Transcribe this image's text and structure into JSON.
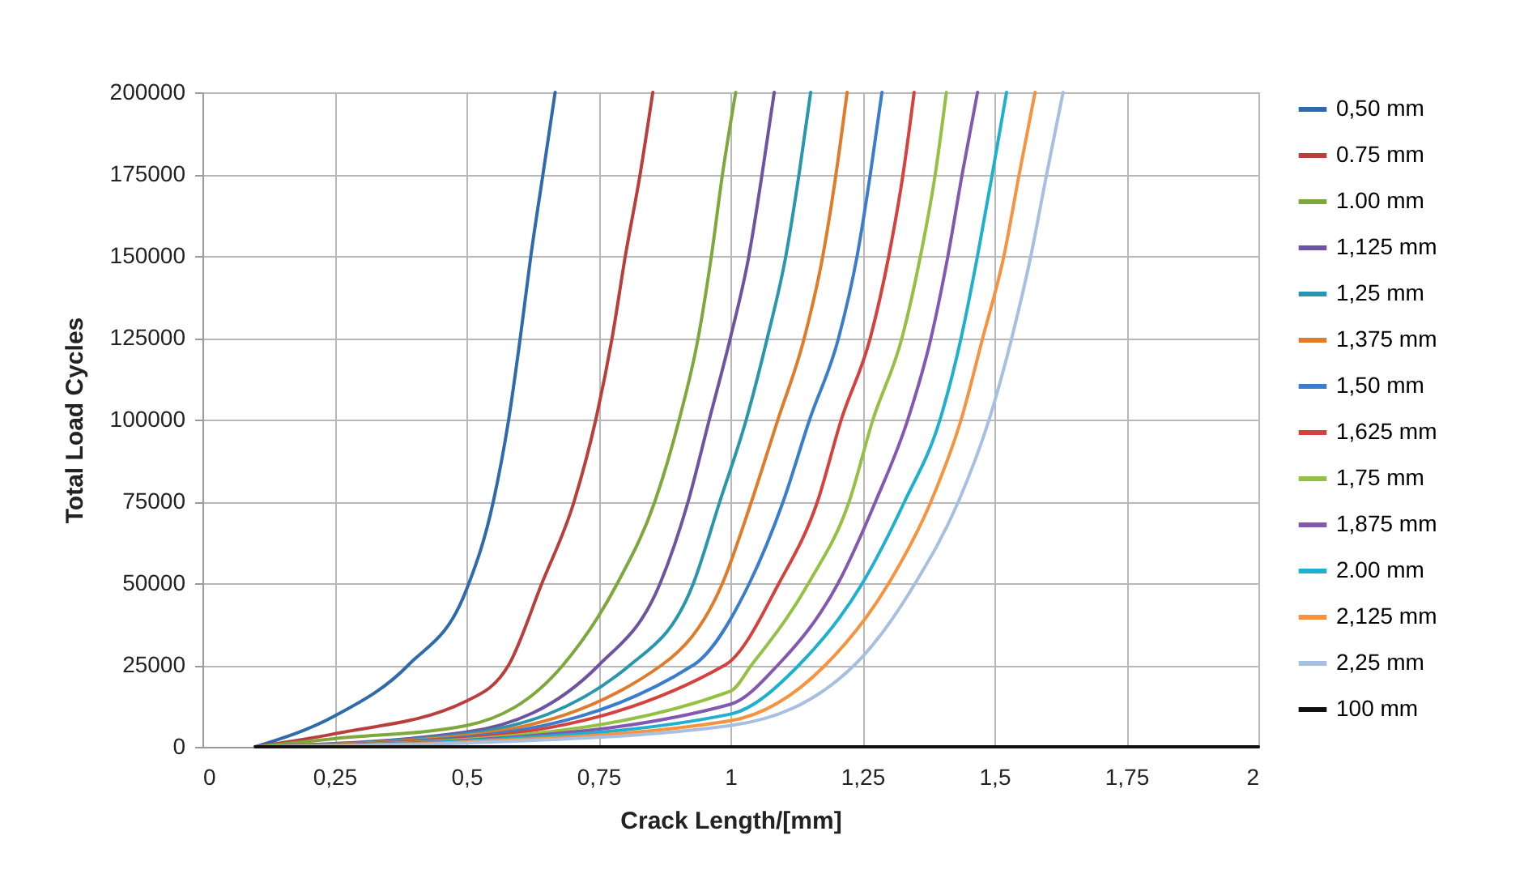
{
  "chart_data": {
    "type": "line",
    "xlabel": "Crack Length/[mm]",
    "ylabel": "Total Load Cycles",
    "xlim": [
      0,
      2
    ],
    "ylim": [
      0,
      200000
    ],
    "xticks": [
      0,
      {
        "value": 0.25,
        "label": "0,25"
      },
      {
        "value": 0.5,
        "label": "0,5"
      },
      {
        "value": 0.75,
        "label": "0,75"
      },
      1,
      {
        "value": 1.25,
        "label": "1,25"
      },
      {
        "value": 1.5,
        "label": "1,5"
      },
      {
        "value": 1.75,
        "label": "1,75"
      },
      2
    ],
    "yticks": [
      0,
      25000,
      50000,
      75000,
      100000,
      125000,
      150000,
      175000,
      200000
    ],
    "grid": true,
    "legend": "right",
    "marker": "none",
    "line_style": "solid",
    "series": [
      {
        "name": "0,50 mm",
        "color": "#2f6bab",
        "x": [
          0.1,
          0.25,
          0.39,
          0.5,
          0.551,
          0.58,
          0.602,
          0.622,
          0.645,
          0.668
        ],
        "values": [
          0,
          9400,
          25000,
          48000,
          75000,
          100000,
          125000,
          150000,
          175000,
          200000
        ]
      },
      {
        "name": "0.75 mm",
        "color": "#b83f3b",
        "x": [
          0.1,
          0.25,
          0.5,
          0.58,
          0.643,
          0.704,
          0.745,
          0.776,
          0.801,
          0.829,
          0.853
        ],
        "values": [
          0,
          4000,
          14000,
          25000,
          50000,
          75000,
          100000,
          125000,
          150000,
          175000,
          200000
        ]
      },
      {
        "name": "1.00 mm",
        "color": "#7ea83b",
        "x": [
          0.1,
          0.25,
          0.5,
          0.683,
          0.786,
          0.857,
          0.903,
          0.939,
          0.964,
          0.985,
          1.01
        ],
        "values": [
          0,
          2500,
          6500,
          25000,
          50000,
          75000,
          100000,
          125000,
          150000,
          175000,
          200000
        ]
      },
      {
        "name": "1,125 mm",
        "color": "#6e54a0",
        "x": [
          0.1,
          0.5,
          0.751,
          0.867,
          0.92,
          0.96,
          1.0,
          1.035,
          1.06,
          1.083
        ],
        "values": [
          0,
          4500,
          25000,
          50000,
          75000,
          100000,
          125000,
          150000,
          175000,
          200000
        ]
      },
      {
        "name": "1,25 mm",
        "color": "#2896ab",
        "x": [
          0.1,
          0.5,
          0.81,
          0.93,
          0.98,
          1.03,
          1.07,
          1.105,
          1.13,
          1.152
        ],
        "values": [
          0,
          4000,
          25000,
          50000,
          75000,
          100000,
          125000,
          150000,
          175000,
          200000
        ]
      },
      {
        "name": "1,375 mm",
        "color": "#e07b2a",
        "x": [
          0.1,
          0.5,
          0.87,
          0.985,
          1.04,
          1.09,
          1.14,
          1.175,
          1.2,
          1.221
        ],
        "values": [
          0,
          3500,
          25000,
          50000,
          75000,
          100000,
          125000,
          150000,
          175000,
          200000
        ]
      },
      {
        "name": "1,50 mm",
        "color": "#3a7dcc",
        "x": [
          0.1,
          0.5,
          0.93,
          1.036,
          1.1,
          1.15,
          1.205,
          1.24,
          1.265,
          1.287
        ],
        "values": [
          0,
          3000,
          25000,
          50000,
          75000,
          100000,
          125000,
          150000,
          175000,
          200000
        ]
      },
      {
        "name": "1,625 mm",
        "color": "#d5413d",
        "x": [
          0.1,
          0.5,
          0.99,
          1.092,
          1.165,
          1.21,
          1.265,
          1.3,
          1.327,
          1.348
        ],
        "values": [
          0,
          2600,
          25000,
          50000,
          75000,
          100000,
          125000,
          150000,
          175000,
          200000
        ]
      },
      {
        "name": "1,75 mm",
        "color": "#94c043",
        "x": [
          0.1,
          0.5,
          1.0,
          1.04,
          1.148,
          1.225,
          1.27,
          1.325,
          1.36,
          1.388,
          1.409
        ],
        "values": [
          0,
          2300,
          17000,
          25000,
          50000,
          75000,
          100000,
          125000,
          150000,
          175000,
          200000
        ]
      },
      {
        "name": "1,875 mm",
        "color": "#8258b0",
        "x": [
          0.1,
          0.5,
          1.0,
          1.09,
          1.204,
          1.275,
          1.336,
          1.38,
          1.412,
          1.439,
          1.468
        ],
        "values": [
          0,
          2000,
          13000,
          25000,
          50000,
          75000,
          100000,
          125000,
          150000,
          175000,
          200000
        ]
      },
      {
        "name": "2.00 mm",
        "color": "#1fb0cf",
        "x": [
          0.1,
          0.5,
          1.0,
          1.13,
          1.25,
          1.33,
          1.397,
          1.437,
          1.468,
          1.496,
          1.523
        ],
        "values": [
          0,
          1800,
          10000,
          25000,
          50000,
          75000,
          100000,
          125000,
          150000,
          175000,
          200000
        ]
      },
      {
        "name": "2,125 mm",
        "color": "#f7923f",
        "x": [
          0.1,
          0.5,
          1.0,
          1.18,
          1.3,
          1.38,
          1.437,
          1.478,
          1.518,
          1.547,
          1.577
        ],
        "values": [
          0,
          1500,
          8000,
          25000,
          50000,
          75000,
          100000,
          125000,
          150000,
          175000,
          200000
        ]
      },
      {
        "name": "2,25 mm",
        "color": "#a7bfe0",
        "x": [
          0.1,
          0.5,
          1.0,
          1.235,
          1.35,
          1.432,
          1.49,
          1.533,
          1.569,
          1.599,
          1.63
        ],
        "values": [
          0,
          1200,
          6500,
          25000,
          50000,
          75000,
          100000,
          125000,
          150000,
          175000,
          200000
        ]
      },
      {
        "name": "100 mm",
        "color": "#111111",
        "x": [
          0.1,
          2
        ],
        "values": [
          0,
          0
        ]
      }
    ]
  }
}
